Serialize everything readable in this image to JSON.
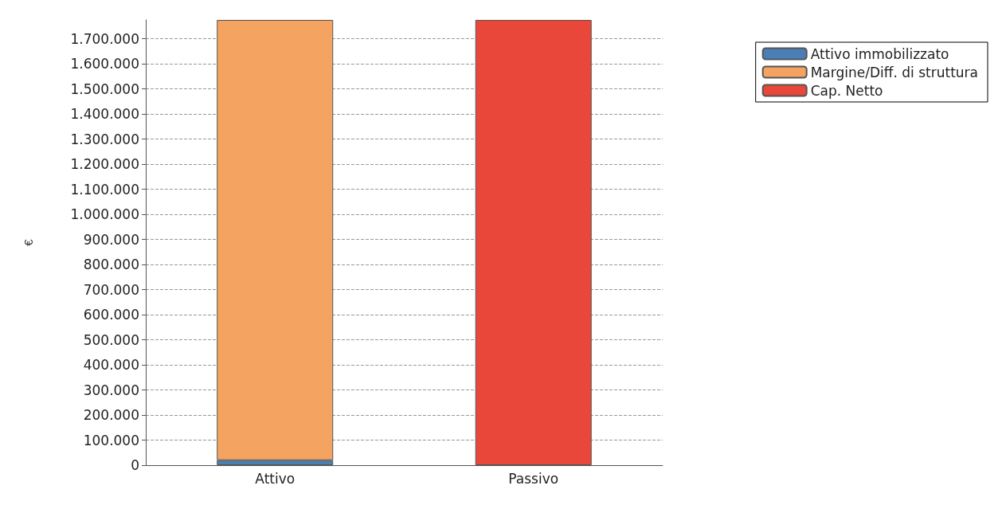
{
  "chart_data": {
    "type": "bar",
    "stacked": true,
    "ylabel": "€",
    "categories": [
      "Attivo",
      "Passivo"
    ],
    "series": [
      {
        "name": "Attivo immobilizzato",
        "color": "#4a7fb5",
        "values": [
          20000,
          null
        ]
      },
      {
        "name": "Margine/Diff. di struttura",
        "color": "#f4a460",
        "values": [
          1755000,
          null
        ]
      },
      {
        "name": "Cap. Netto",
        "color": "#e8473a",
        "values": [
          null,
          1775000
        ]
      }
    ],
    "ylim": [
      0,
      1775000
    ],
    "yticks": [
      0,
      {
        "value": 100000,
        "label": "100.000"
      },
      {
        "value": 200000,
        "label": "200.000"
      },
      {
        "value": 300000,
        "label": "300.000"
      },
      {
        "value": 400000,
        "label": "400.000"
      },
      {
        "value": 500000,
        "label": "500.000"
      },
      {
        "value": 600000,
        "label": "600.000"
      },
      {
        "value": 700000,
        "label": "700.000"
      },
      {
        "value": 800000,
        "label": "800.000"
      },
      {
        "value": 900000,
        "label": "900.000"
      },
      {
        "value": 1000000,
        "label": "1.000.000"
      },
      {
        "value": 1100000,
        "label": "1.100.000"
      },
      {
        "value": 1200000,
        "label": "1.200.000"
      },
      {
        "value": 1300000,
        "label": "1.300.000"
      },
      {
        "value": 1400000,
        "label": "1.400.000"
      },
      {
        "value": 1500000,
        "label": "1.500.000"
      },
      {
        "value": 1600000,
        "label": "1.600.000"
      },
      {
        "value": 1700000,
        "label": "1.700.000"
      }
    ],
    "grid": "y",
    "legend": "top right"
  }
}
